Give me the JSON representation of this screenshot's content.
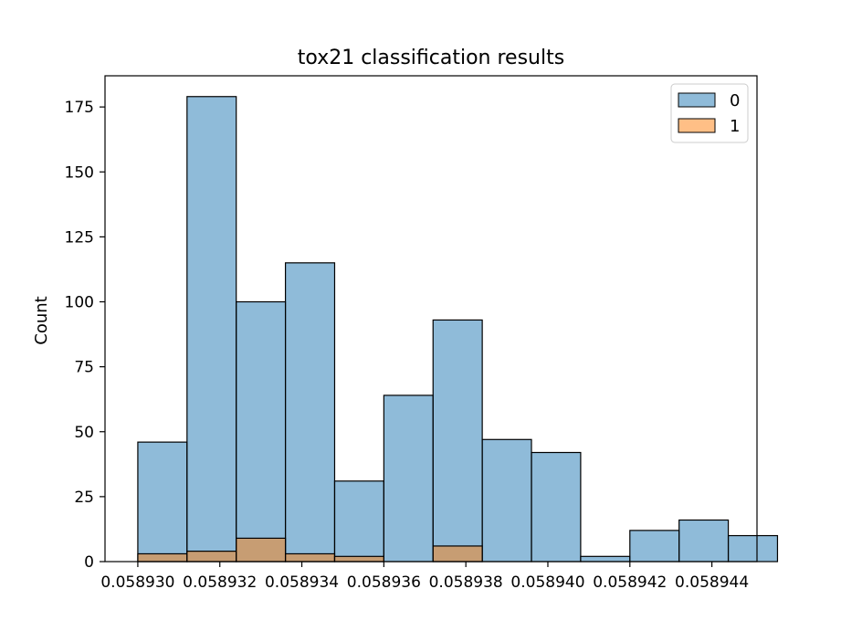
{
  "chart_data": {
    "type": "bar",
    "title": "tox21 classification results",
    "xlabel": "",
    "ylabel": "Count",
    "xlim": [
      0.0589292,
      0.0589451
    ],
    "ylim": [
      0,
      187
    ],
    "bin_edges": [
      0.05893,
      0.0589312,
      0.0589324,
      0.0589336,
      0.0589348,
      0.058936,
      0.0589372,
      0.0589384,
      0.0589396,
      0.0589408,
      0.058942,
      0.0589432,
      0.0589444,
      0.0589456
    ],
    "x_ticks": [
      "0.058930",
      "0.058932",
      "0.058934",
      "0.058936",
      "0.058938",
      "0.058940",
      "0.058942",
      "0.058944"
    ],
    "x_tick_values": [
      0.05893,
      0.058932,
      0.058934,
      0.058936,
      0.058938,
      0.05894,
      0.058942,
      0.058944
    ],
    "y_ticks": [
      0,
      25,
      50,
      75,
      100,
      125,
      150,
      175
    ],
    "series": [
      {
        "name": "0",
        "color": "#1f77b4",
        "values": [
          46,
          179,
          100,
          115,
          31,
          64,
          93,
          47,
          42,
          2,
          12,
          16,
          10
        ]
      },
      {
        "name": "1",
        "color": "#ff7f0e",
        "values": [
          3,
          4,
          9,
          3,
          2,
          0,
          6,
          0,
          0,
          0,
          0,
          0,
          0
        ]
      }
    ],
    "legend": {
      "position": "top-right",
      "entries": [
        "0",
        "1"
      ]
    },
    "grid": false
  }
}
